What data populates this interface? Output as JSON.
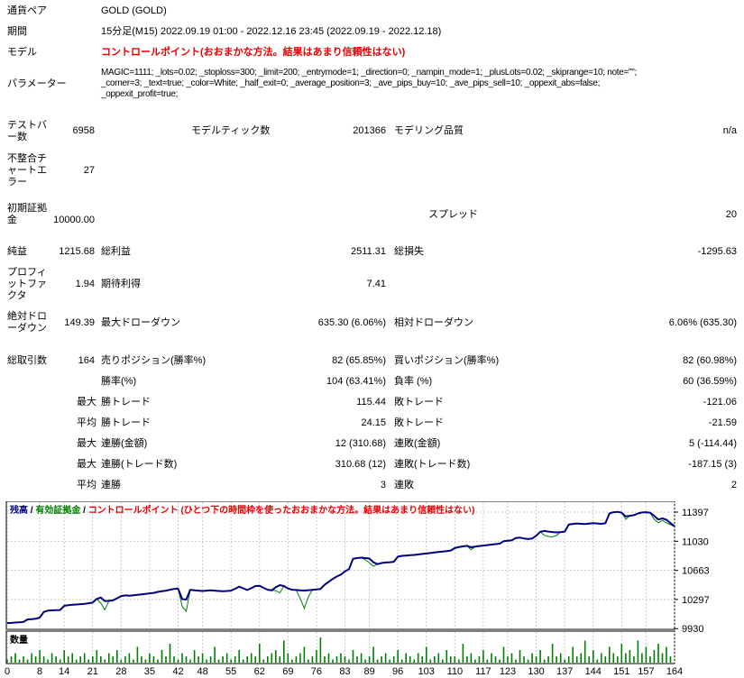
{
  "report": {
    "rows": [
      {
        "label": "通貨ペア",
        "wide": "GOLD (GOLD)"
      },
      {
        "label": "期間",
        "wide": "15分足(M15) 2022.09.19 01:00 - 2022.12.16 23:45 (2022.09.19 - 2022.12.18)"
      },
      {
        "label": "モデル",
        "wide": "コントロールポイント(おおまかな方法。結果はあまり信頼性はない)",
        "red": true
      },
      {
        "label": "パラメーター",
        "wide": "MAGIC=1111; _lots=0.02; _stoploss=300; _limit=200; _entrymode=1; _direction=0; _nampin_mode=1; _plusLots=0.02; _skiprange=10; note=\"\";\n_corner=3; _text=true; _color=White; _half_exit=0; _average_position=3; _ave_pips_buy=10; _ave_pips_sell=10; _oppexit_abs=false;\n_oppexit_profit=true;"
      },
      {
        "label": "テストバ\nー数",
        "v1": "6958",
        "l2": "モデルティック数",
        "v2": "201366",
        "l3": "モデリング品質",
        "v3": "n/a"
      },
      {
        "label": "不整合チ\nャートエ\nラー",
        "v1": "27"
      },
      {
        "label": "初期証拠\n金",
        "v1": "10000.00",
        "l3": "スプレッド",
        "v3": "20"
      },
      {
        "label": "純益",
        "v1": "1215.68",
        "l2": "総利益",
        "v2": "2511.31",
        "l3": "総損失",
        "v3": "-1295.63"
      },
      {
        "label": "プロフィ\nットファ\nクタ",
        "v1": "1.94",
        "l2": "期待利得",
        "v2": "7.41"
      },
      {
        "label": "絶対ドロ\nーダウン",
        "v1": "149.39",
        "l2": "最大ドローダウン",
        "v2": "635.30 (6.06%)",
        "l3": "相対ドローダウン",
        "v3": "6.06% (635.30)"
      },
      {
        "label": "総取引数",
        "v1": "164",
        "l2": "売りポジション(勝率%)",
        "v2": "82 (65.85%)",
        "l3": "買いポジション(勝率%)",
        "v3": "82 (60.98%)"
      },
      {
        "l2": "勝率(%)",
        "v2": "104 (63.41%)",
        "l3": "負率 (%)",
        "v3": "60 (36.59%)"
      },
      {
        "prefix": "最大",
        "l2": "勝トレード",
        "v2": "115.44",
        "l3": "敗トレード",
        "v3": "-121.06"
      },
      {
        "prefix": "平均",
        "l2": "勝トレード",
        "v2": "24.15",
        "l3": "敗トレード",
        "v3": "-21.59"
      },
      {
        "prefix": "最大",
        "l2": "連勝(金額)",
        "v2": "12 (310.68)",
        "l3": "連敗(金額)",
        "v3": "5 (-114.44)"
      },
      {
        "prefix": "最大",
        "l2": "連勝(トレード数)",
        "v2": "310.68 (12)",
        "l3": "連敗(トレード数)",
        "v3": "-187.15 (3)"
      },
      {
        "prefix": "平均",
        "l2": "連勝",
        "v2": "3",
        "l3": "連敗",
        "v3": "2"
      }
    ]
  },
  "chart_data": {
    "type": "line",
    "legend": {
      "balance": "残高",
      "equity": "有効証拠金",
      "model": "コントロールポイント (ひとつ下の時間枠を使ったおおまかな方法。結果はあまり信頼性はない)",
      "sep": " / "
    },
    "volume_label": "数量",
    "y_ticks": [
      11397,
      11030,
      10663,
      10297,
      9930
    ],
    "x_ticks": [
      0,
      8,
      14,
      21,
      28,
      35,
      42,
      48,
      55,
      62,
      69,
      76,
      83,
      89,
      96,
      103,
      110,
      117,
      123,
      130,
      137,
      144,
      151,
      157,
      164
    ],
    "x_range": [
      0,
      164
    ],
    "initial_deposit": 10000,
    "final_balance": 11215.68,
    "colors": {
      "balance": "#000080",
      "equity": "#008000",
      "grid": "#c9c9c9",
      "volume": "#008000",
      "model_text": "#e60000"
    },
    "balance_series": [
      [
        0,
        10000
      ],
      [
        1,
        10002
      ],
      [
        2,
        10006
      ],
      [
        3,
        10010
      ],
      [
        4,
        10014
      ],
      [
        5,
        10046
      ],
      [
        6,
        10050
      ],
      [
        7,
        10054
      ],
      [
        8,
        10070
      ],
      [
        9,
        10140
      ],
      [
        10,
        10156
      ],
      [
        11,
        10160
      ],
      [
        12,
        10162
      ],
      [
        13,
        10164
      ],
      [
        14,
        10218
      ],
      [
        15,
        10224
      ],
      [
        16,
        10230
      ],
      [
        17,
        10234
      ],
      [
        18,
        10238
      ],
      [
        19,
        10242
      ],
      [
        20,
        10250
      ],
      [
        21,
        10258
      ],
      [
        22,
        10304
      ],
      [
        23,
        10322
      ],
      [
        24,
        10276
      ],
      [
        25,
        10280
      ],
      [
        26,
        10286
      ],
      [
        27,
        10312
      ],
      [
        28,
        10340
      ],
      [
        29,
        10348
      ],
      [
        30,
        10344
      ],
      [
        31,
        10350
      ],
      [
        32,
        10356
      ],
      [
        33,
        10362
      ],
      [
        34,
        10368
      ],
      [
        35,
        10374
      ],
      [
        36,
        10380
      ],
      [
        37,
        10392
      ],
      [
        38,
        10400
      ],
      [
        39,
        10408
      ],
      [
        40,
        10420
      ],
      [
        41,
        10430
      ],
      [
        42,
        10434
      ],
      [
        43,
        10302
      ],
      [
        44,
        10296
      ],
      [
        45,
        10420
      ],
      [
        46,
        10412
      ],
      [
        47,
        10408
      ],
      [
        48,
        10404
      ],
      [
        49,
        10408
      ],
      [
        50,
        10412
      ],
      [
        51,
        10408
      ],
      [
        52,
        10404
      ],
      [
        53,
        10400
      ],
      [
        54,
        10404
      ],
      [
        55,
        10408
      ],
      [
        56,
        10432
      ],
      [
        57,
        10458
      ],
      [
        58,
        10438
      ],
      [
        59,
        10416
      ],
      [
        60,
        10440
      ],
      [
        61,
        10466
      ],
      [
        62,
        10470
      ],
      [
        63,
        10444
      ],
      [
        64,
        10420
      ],
      [
        65,
        10412
      ],
      [
        66,
        10452
      ],
      [
        67,
        10478
      ],
      [
        68,
        10466
      ],
      [
        69,
        10436
      ],
      [
        70,
        10420
      ],
      [
        71,
        10416
      ],
      [
        72,
        10412
      ],
      [
        73,
        10410
      ],
      [
        74,
        10414
      ],
      [
        75,
        10418
      ],
      [
        76,
        10424
      ],
      [
        77,
        10430
      ],
      [
        78,
        10482
      ],
      [
        79,
        10520
      ],
      [
        80,
        10556
      ],
      [
        81,
        10586
      ],
      [
        82,
        10610
      ],
      [
        83,
        10650
      ],
      [
        84,
        10680
      ],
      [
        85,
        10810
      ],
      [
        86,
        10818
      ],
      [
        87,
        10824
      ],
      [
        88,
        10818
      ],
      [
        89,
        10812
      ],
      [
        90,
        10766
      ],
      [
        91,
        10742
      ],
      [
        92,
        10756
      ],
      [
        93,
        10762
      ],
      [
        94,
        10766
      ],
      [
        95,
        10772
      ],
      [
        96,
        10836
      ],
      [
        97,
        10846
      ],
      [
        98,
        10850
      ],
      [
        99,
        10854
      ],
      [
        100,
        10858
      ],
      [
        101,
        10864
      ],
      [
        102,
        10870
      ],
      [
        103,
        10876
      ],
      [
        104,
        10882
      ],
      [
        105,
        10888
      ],
      [
        106,
        10894
      ],
      [
        107,
        10900
      ],
      [
        108,
        10906
      ],
      [
        109,
        10914
      ],
      [
        110,
        10944
      ],
      [
        111,
        10958
      ],
      [
        112,
        10966
      ],
      [
        113,
        10972
      ],
      [
        114,
        10954
      ],
      [
        115,
        10962
      ],
      [
        116,
        10970
      ],
      [
        117,
        10976
      ],
      [
        118,
        10982
      ],
      [
        119,
        10988
      ],
      [
        120,
        10994
      ],
      [
        121,
        11000
      ],
      [
        122,
        11030
      ],
      [
        123,
        11036
      ],
      [
        124,
        11042
      ],
      [
        125,
        11070
      ],
      [
        126,
        11076
      ],
      [
        127,
        11066
      ],
      [
        128,
        11058
      ],
      [
        129,
        11064
      ],
      [
        130,
        11100
      ],
      [
        131,
        11150
      ],
      [
        132,
        11160
      ],
      [
        133,
        11152
      ],
      [
        134,
        11146
      ],
      [
        135,
        11142
      ],
      [
        136,
        11146
      ],
      [
        137,
        11152
      ],
      [
        138,
        11240
      ],
      [
        139,
        11248
      ],
      [
        140,
        11254
      ],
      [
        141,
        11250
      ],
      [
        142,
        11246
      ],
      [
        143,
        11252
      ],
      [
        144,
        11258
      ],
      [
        145,
        11254
      ],
      [
        146,
        11250
      ],
      [
        147,
        11256
      ],
      [
        148,
        11380
      ],
      [
        149,
        11396
      ],
      [
        150,
        11400
      ],
      [
        151,
        11390
      ],
      [
        152,
        11344
      ],
      [
        153,
        11350
      ],
      [
        154,
        11358
      ],
      [
        155,
        11380
      ],
      [
        156,
        11392
      ],
      [
        157,
        11396
      ],
      [
        158,
        11388
      ],
      [
        159,
        11350
      ],
      [
        160,
        11304
      ],
      [
        161,
        11318
      ],
      [
        162,
        11300
      ],
      [
        163,
        11258
      ],
      [
        164,
        11216
      ]
    ],
    "equity_overrides": [
      [
        23,
        10250
      ],
      [
        24,
        10168
      ],
      [
        43,
        10210
      ],
      [
        44,
        10148
      ],
      [
        66,
        10408
      ],
      [
        67,
        10380
      ],
      [
        72,
        10310
      ],
      [
        73,
        10186
      ],
      [
        74,
        10330
      ],
      [
        88,
        10795
      ],
      [
        89,
        10760
      ],
      [
        90,
        10716
      ],
      [
        114,
        10924
      ],
      [
        132,
        11104
      ],
      [
        133,
        11090
      ],
      [
        134,
        11086
      ],
      [
        135,
        11102
      ],
      [
        152,
        11306
      ],
      [
        159,
        11308
      ],
      [
        160,
        11262
      ],
      [
        161,
        11292
      ],
      [
        162,
        11262
      ],
      [
        163,
        11238
      ]
    ],
    "volumes": [
      1,
      2,
      3,
      1,
      2,
      1,
      3,
      2,
      4,
      2,
      1,
      3,
      2,
      1,
      4,
      2,
      3,
      1,
      2,
      3,
      1,
      2,
      4,
      2,
      1,
      3,
      2,
      4,
      1,
      2,
      3,
      1,
      5,
      2,
      1,
      3,
      2,
      1,
      4,
      2,
      6,
      2,
      1,
      3,
      2,
      1,
      4,
      2,
      3,
      1,
      2,
      5,
      1,
      2,
      3,
      1,
      2,
      4,
      1,
      2,
      3,
      2,
      6,
      1,
      2,
      3,
      4,
      2,
      7,
      3,
      1,
      2,
      3,
      5,
      1,
      2,
      4,
      8,
      2,
      3,
      1,
      2,
      3,
      2,
      1,
      4,
      2,
      3,
      1,
      2,
      5,
      1,
      2,
      3,
      1,
      2,
      4,
      1,
      3,
      2,
      1,
      3,
      2,
      5,
      1,
      2,
      3,
      1,
      4,
      2,
      2,
      1,
      6,
      2,
      3,
      1,
      2,
      4,
      1,
      3,
      2,
      1,
      5,
      2,
      3,
      1,
      4,
      2,
      1,
      3,
      2,
      4,
      1,
      2,
      6,
      2,
      3,
      1,
      2,
      5,
      2,
      3,
      7,
      2,
      4,
      1,
      3,
      2,
      5,
      3,
      2,
      6,
      3,
      4,
      2,
      7,
      3,
      5,
      2,
      4,
      6,
      3,
      5,
      2
    ]
  }
}
